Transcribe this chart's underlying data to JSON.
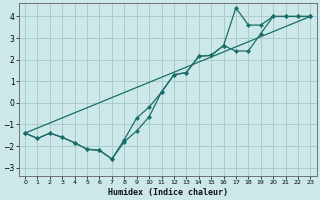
{
  "xlabel": "Humidex (Indice chaleur)",
  "bg_color": "#cce8e8",
  "grid_color": "#aacccc",
  "line_color": "#1a6e6a",
  "xlim": [
    -0.5,
    23.5
  ],
  "ylim": [
    -3.4,
    4.6
  ],
  "xticks": [
    0,
    1,
    2,
    3,
    4,
    5,
    6,
    7,
    8,
    9,
    10,
    11,
    12,
    13,
    14,
    15,
    16,
    17,
    18,
    19,
    20,
    21,
    22,
    23
  ],
  "yticks": [
    -3,
    -2,
    -1,
    0,
    1,
    2,
    3,
    4
  ],
  "line1_x": [
    0,
    23
  ],
  "line1_y": [
    -1.4,
    4.0
  ],
  "line2_x": [
    0,
    1,
    2,
    3,
    4,
    5,
    6,
    7,
    8,
    9,
    10,
    11,
    12,
    13,
    14,
    15,
    16,
    17,
    18,
    19,
    20,
    21,
    22,
    23
  ],
  "line2_y": [
    -1.4,
    -1.65,
    -1.4,
    -1.6,
    -1.85,
    -2.15,
    -2.2,
    -2.6,
    -1.7,
    -0.7,
    -0.2,
    0.5,
    1.3,
    1.4,
    2.15,
    2.2,
    2.65,
    4.4,
    3.6,
    3.6,
    4.0,
    4.0,
    4.0,
    4.0
  ],
  "line3_x": [
    0,
    1,
    2,
    3,
    4,
    5,
    6,
    7,
    8,
    9,
    10,
    11,
    12,
    13,
    14,
    15,
    16,
    17,
    18,
    19,
    20,
    21,
    22,
    23
  ],
  "line3_y": [
    -1.4,
    -1.65,
    -1.4,
    -1.6,
    -1.85,
    -2.15,
    -2.2,
    -2.6,
    -1.8,
    -1.3,
    -0.65,
    0.5,
    1.3,
    1.4,
    2.15,
    2.2,
    2.65,
    2.4,
    2.4,
    3.2,
    4.0,
    4.0,
    4.0,
    4.0
  ]
}
